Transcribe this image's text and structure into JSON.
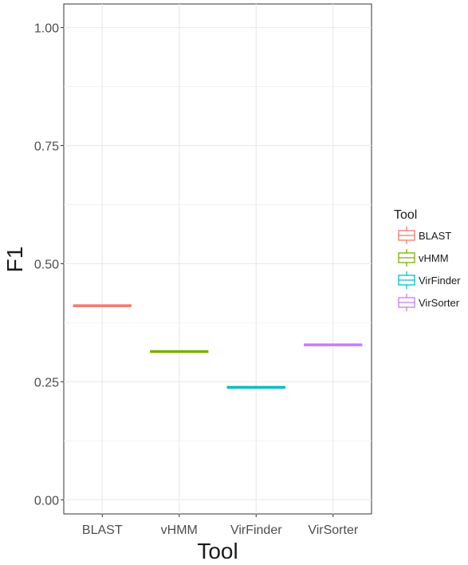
{
  "chart_data": {
    "type": "box",
    "xlabel": "Tool",
    "ylabel": "F1",
    "ylim": [
      -0.03,
      1.05
    ],
    "yticks": [
      {
        "value": 0.0,
        "label": "0.00"
      },
      {
        "value": 0.25,
        "label": "0.25"
      },
      {
        "value": 0.5,
        "label": "0.50"
      },
      {
        "value": 0.75,
        "label": "0.75"
      },
      {
        "value": 1.0,
        "label": "1.00"
      }
    ],
    "categories": [
      "BLAST",
      "vHMM",
      "VirFinder",
      "VirSorter"
    ],
    "values": [
      0.411,
      0.314,
      0.238,
      0.328
    ],
    "colors": [
      "#F8766D",
      "#7CAE00",
      "#00BFC4",
      "#C77CFF"
    ],
    "grid": true,
    "legend": {
      "title": "Tool",
      "position": "right",
      "entries": [
        "BLAST",
        "vHMM",
        "VirFinder",
        "VirSorter"
      ]
    }
  }
}
